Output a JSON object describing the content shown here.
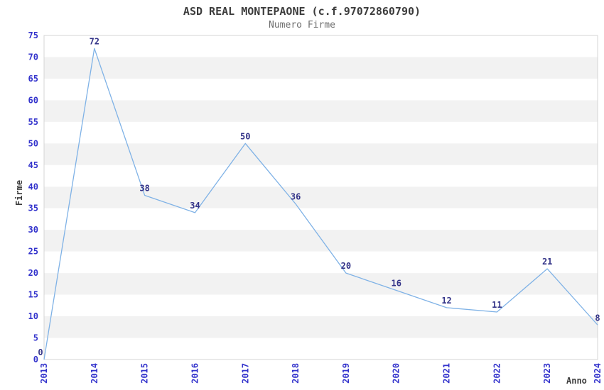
{
  "header": {
    "title": "ASD REAL MONTEPAONE (c.f.97072860790)",
    "subtitle": "Numero Firme"
  },
  "chart_data": {
    "type": "line",
    "title": "ASD REAL MONTEPAONE (c.f.97072860790)",
    "subtitle": "Numero Firme",
    "xlabel": "Anno",
    "ylabel": "Firme",
    "categories": [
      "2013",
      "2014",
      "2015",
      "2016",
      "2017",
      "2018",
      "2019",
      "2020",
      "2021",
      "2022",
      "2023",
      "2024"
    ],
    "values": [
      0,
      72,
      38,
      34,
      50,
      36,
      20,
      16,
      12,
      11,
      21,
      8
    ],
    "ylim": [
      0,
      75
    ],
    "ytick_step": 5,
    "yticks": [
      0,
      5,
      10,
      15,
      20,
      25,
      30,
      35,
      40,
      45,
      50,
      55,
      60,
      65,
      70,
      75
    ],
    "grid": "horizontal-alternating-bands",
    "legend": "none",
    "markers": "none",
    "data_labels_visible": true,
    "colors": {
      "line": "#7fb2e6",
      "tick_label": "#3333cc",
      "data_label": "#333388",
      "band_fill": "#f2f2f2",
      "band_alt_fill": "#ffffff",
      "plot_border": "#d4d4d4",
      "title_text": "#3c3c3c",
      "subtitle_text": "#6e6e6e",
      "background": "#ffffff"
    }
  }
}
